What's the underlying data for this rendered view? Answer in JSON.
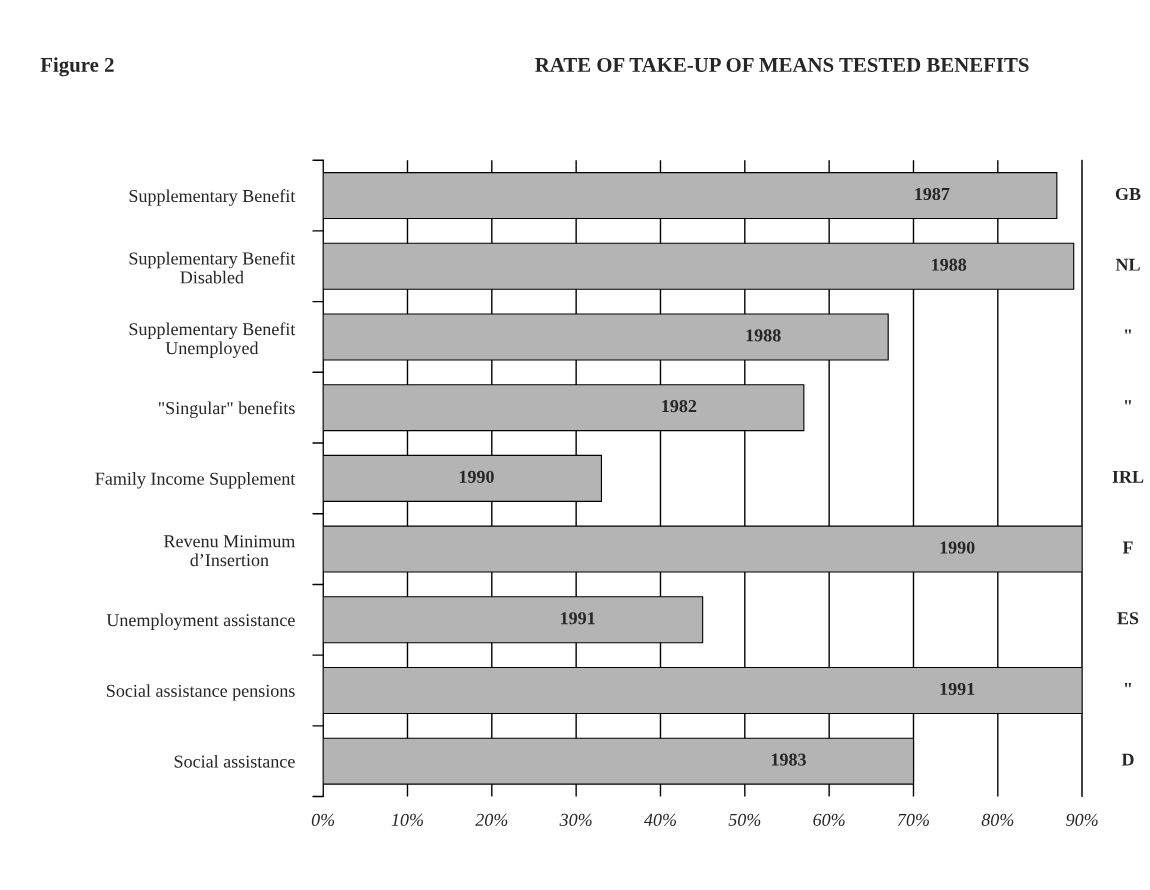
{
  "chart_data": {
    "type": "bar",
    "orientation": "horizontal",
    "title": "RATE OF TAKE-UP OF MEANS TESTED BENEFITS",
    "categories": [
      "Supplementary Benefit",
      "Supplementary Benefit\nDisabled",
      "Supplementary Benefit\nUnemployed",
      "\"Singular\" benefits",
      "Family Income Supplement",
      "Revenu Minimum\nd’Insertion",
      "Unemployment assistance",
      "Social assistance pensions",
      "Social assistance"
    ],
    "values": [
      87,
      89,
      67,
      57,
      33,
      90,
      45,
      90,
      70
    ],
    "color": "#b4b4b4",
    "xlim": [
      0,
      90
    ],
    "xticks": [
      {
        "value": 0,
        "label": "0%"
      },
      {
        "value": 10,
        "label": "10%"
      },
      {
        "value": 20,
        "label": "20%"
      },
      {
        "value": 30,
        "label": "30%"
      },
      {
        "value": 40,
        "label": "40%"
      },
      {
        "value": 50,
        "label": "50%"
      },
      {
        "value": 60,
        "label": "60%"
      },
      {
        "value": 70,
        "label": "70%"
      },
      {
        "value": 80,
        "label": "80%"
      },
      {
        "value": 90,
        "label": "90%"
      }
    ],
    "grid": "x",
    "annotations": [
      "Figure 2",
      "GB",
      "NL",
      "\"",
      "\"",
      "IRL",
      "F",
      "ES",
      "\"",
      "D",
      "1987",
      "1988",
      "1988",
      "1982",
      "1990",
      "1990",
      "1991",
      "1991",
      "1983"
    ]
  }
}
